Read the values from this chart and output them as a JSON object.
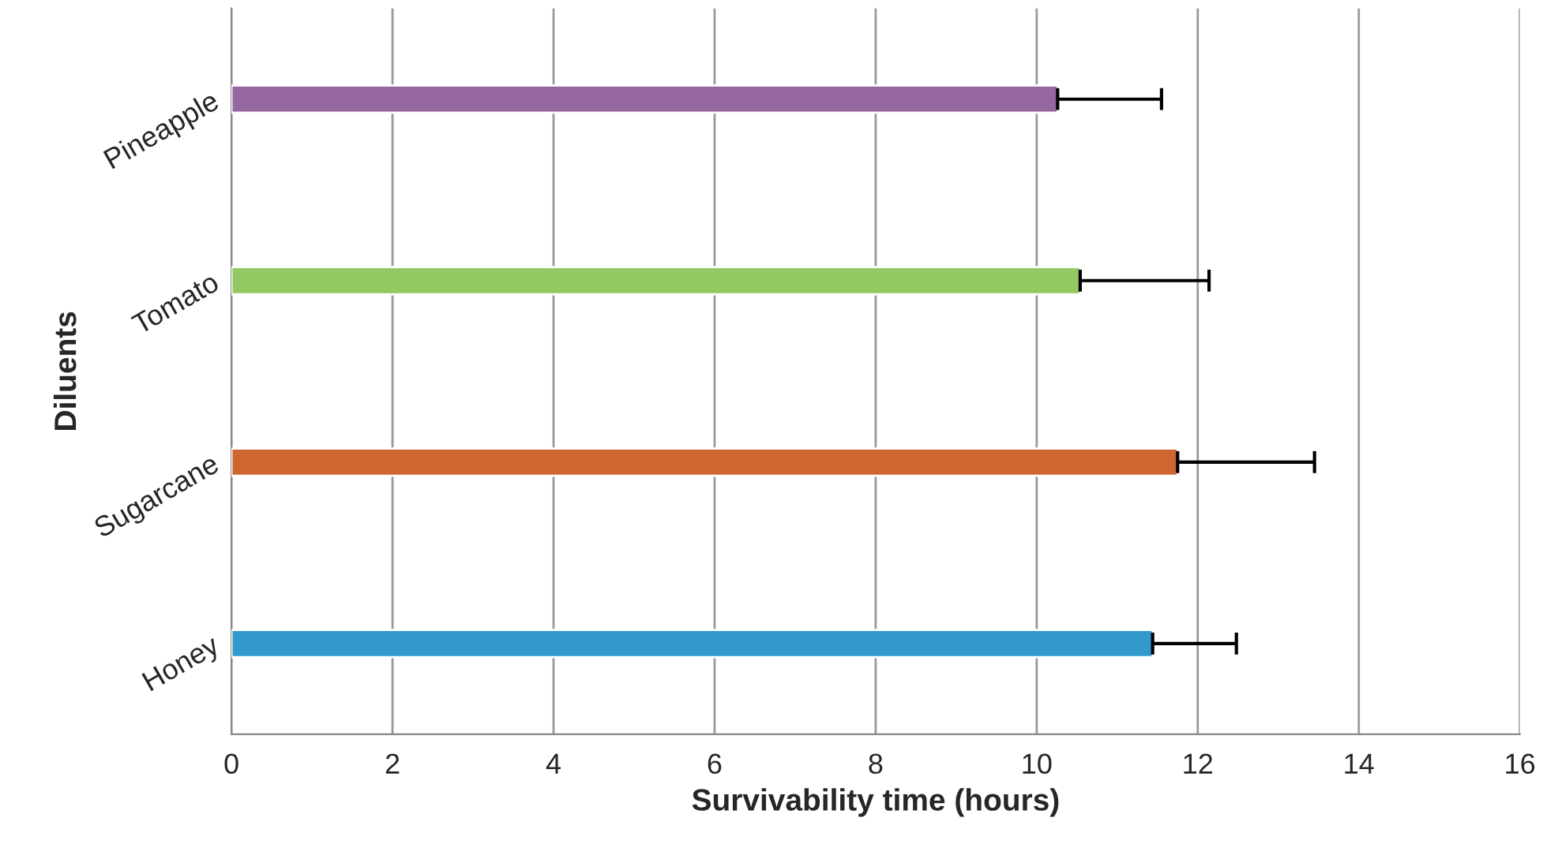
{
  "chart_data": {
    "type": "bar",
    "orientation": "horizontal",
    "xlabel": "Survivability time (hours)",
    "ylabel": "Diluents",
    "categories": [
      "Pineapple",
      "Tomato",
      "Sugarcane",
      "Honey"
    ],
    "values": [
      10.26,
      10.54,
      11.75,
      11.44
    ],
    "colors": [
      "#9467a0",
      "#92c962",
      "#cf6531",
      "#3399cc"
    ],
    "errors": [
      [
        10.26,
        11.55
      ],
      [
        10.54,
        12.14
      ],
      [
        11.75,
        13.45
      ],
      [
        11.44,
        12.48
      ]
    ],
    "xlim": [
      0,
      16
    ],
    "xticks": [
      0,
      2,
      4,
      6,
      8,
      10,
      12,
      14,
      16
    ],
    "grid": "x"
  }
}
